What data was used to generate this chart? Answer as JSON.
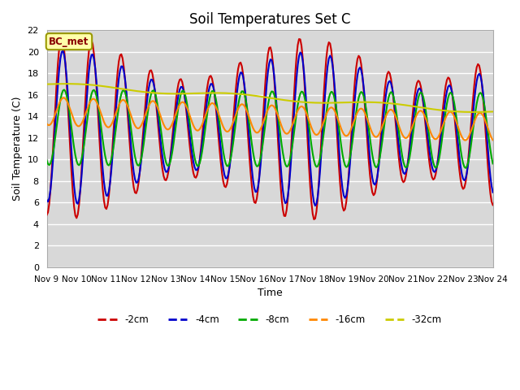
{
  "title": "Soil Temperatures Set C",
  "xlabel": "Time",
  "ylabel": "Soil Temperature (C)",
  "ylim": [
    0,
    22
  ],
  "yticks": [
    0,
    2,
    4,
    6,
    8,
    10,
    12,
    14,
    16,
    18,
    20,
    22
  ],
  "xtick_labels": [
    "Nov 9",
    "Nov 10",
    "Nov 11",
    "Nov 12",
    "Nov 13",
    "Nov 14",
    "Nov 15",
    "Nov 16",
    "Nov 17",
    "Nov 18",
    "Nov 19",
    "Nov 20",
    "Nov 21",
    "Nov 22",
    "Nov 23",
    "Nov 24"
  ],
  "colors": {
    "-2cm": "#cc0000",
    "-4cm": "#0000cc",
    "-8cm": "#00aa00",
    "-16cm": "#ff8800",
    "-32cm": "#cccc00"
  },
  "legend_labels": [
    "-2cm",
    "-4cm",
    "-8cm",
    "-16cm",
    "-32cm"
  ],
  "annotation_text": "BC_met",
  "annotation_box_color": "#ffffaa",
  "annotation_box_edge": "#999900",
  "annotation_text_color": "#880000",
  "plot_bg_color": "#d8d8d8",
  "fig_bg_color": "#ffffff",
  "grid_color": "#ffffff",
  "title_fontsize": 12
}
